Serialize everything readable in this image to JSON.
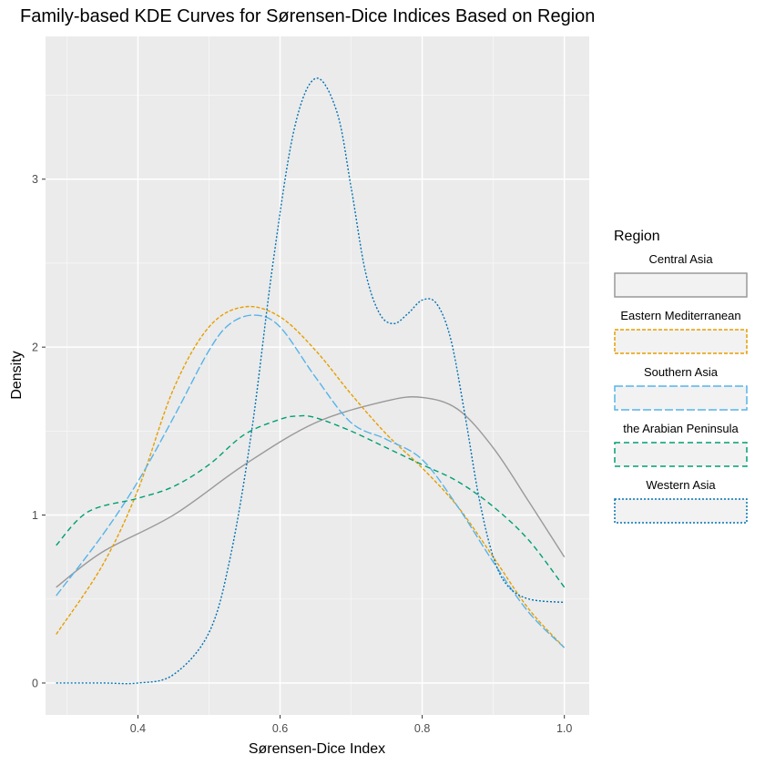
{
  "chart_data": {
    "type": "line",
    "title": "Family-based KDE Curves for Sørensen-Dice Indices Based on Region",
    "xlabel": "Sørensen-Dice Index",
    "ylabel": "Density",
    "xlim": [
      0.27,
      1.035
    ],
    "ylim": [
      -0.19,
      3.85
    ],
    "x_ticks": [
      0.4,
      0.6,
      0.8,
      1.0
    ],
    "x_tick_labels": [
      "0.4",
      "0.6",
      "0.8",
      "1.0"
    ],
    "y_ticks": [
      0,
      1,
      2,
      3
    ],
    "y_tick_labels": [
      "0",
      "1",
      "2",
      "3"
    ],
    "grid": true,
    "legend": {
      "title": "Region",
      "position": "right"
    },
    "series": [
      {
        "name": "Central Asia",
        "color": "#999999",
        "dash": "solid",
        "x": [
          0.285,
          0.35,
          0.45,
          0.55,
          0.65,
          0.75,
          0.8,
          0.85,
          0.9,
          0.95,
          1.0
        ],
        "y": [
          0.57,
          0.78,
          1.0,
          1.3,
          1.55,
          1.68,
          1.7,
          1.63,
          1.4,
          1.08,
          0.75
        ]
      },
      {
        "name": "Eastern Mediterranean",
        "color": "#E69F00",
        "dash": "dashed-short",
        "x": [
          0.285,
          0.35,
          0.4,
          0.45,
          0.5,
          0.55,
          0.6,
          0.65,
          0.7,
          0.75,
          0.8,
          0.85,
          0.9,
          0.95,
          1.0
        ],
        "y": [
          0.29,
          0.7,
          1.15,
          1.75,
          2.12,
          2.24,
          2.18,
          1.98,
          1.72,
          1.48,
          1.28,
          1.05,
          0.75,
          0.44,
          0.21
        ]
      },
      {
        "name": "Southern Asia",
        "color": "#56B4E9",
        "dash": "dashed-long",
        "x": [
          0.285,
          0.35,
          0.4,
          0.45,
          0.5,
          0.53,
          0.565,
          0.6,
          0.65,
          0.7,
          0.75,
          0.8,
          0.85,
          0.9,
          0.95,
          1.0
        ],
        "y": [
          0.52,
          0.88,
          1.2,
          1.58,
          1.98,
          2.14,
          2.19,
          2.12,
          1.82,
          1.55,
          1.45,
          1.33,
          1.05,
          0.72,
          0.42,
          0.21
        ]
      },
      {
        "name": "the Arabian Peninsula",
        "color": "#009E73",
        "dash": "dashed",
        "x": [
          0.285,
          0.33,
          0.4,
          0.45,
          0.5,
          0.55,
          0.6,
          0.625,
          0.65,
          0.7,
          0.75,
          0.8,
          0.85,
          0.9,
          0.95,
          1.0
        ],
        "y": [
          0.82,
          1.02,
          1.1,
          1.17,
          1.3,
          1.48,
          1.57,
          1.59,
          1.58,
          1.5,
          1.4,
          1.3,
          1.2,
          1.05,
          0.85,
          0.57
        ]
      },
      {
        "name": "Western Asia",
        "color": "#0072B2",
        "dash": "dotted",
        "x": [
          0.285,
          0.35,
          0.4,
          0.45,
          0.5,
          0.53,
          0.56,
          0.59,
          0.62,
          0.65,
          0.68,
          0.7,
          0.72,
          0.74,
          0.76,
          0.78,
          0.8,
          0.82,
          0.84,
          0.86,
          0.88,
          0.9,
          0.92,
          0.95,
          1.0
        ],
        "y": [
          0.0,
          0.0,
          0.0,
          0.05,
          0.3,
          0.75,
          1.5,
          2.5,
          3.3,
          3.6,
          3.4,
          2.95,
          2.45,
          2.2,
          2.14,
          2.2,
          2.28,
          2.26,
          2.05,
          1.6,
          1.1,
          0.75,
          0.58,
          0.5,
          0.48
        ]
      }
    ]
  }
}
